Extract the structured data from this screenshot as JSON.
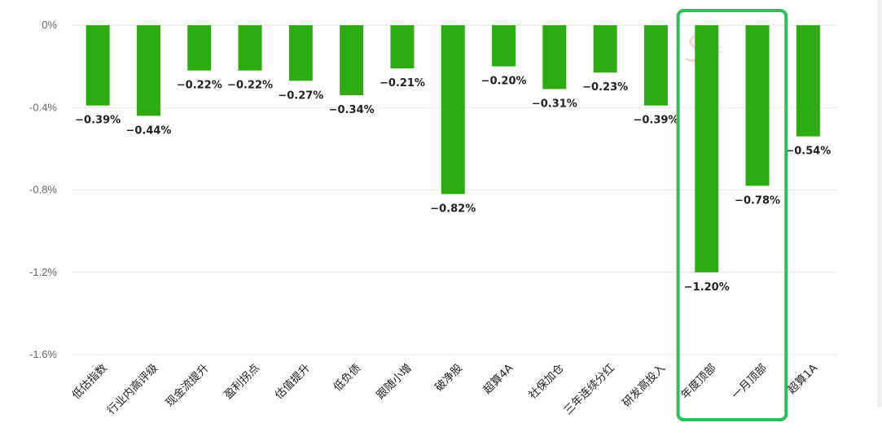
{
  "chart_data": {
    "type": "bar",
    "categories": [
      "低估指数",
      "行业内高评级",
      "现金流提升",
      "盈利拐点",
      "估值提升",
      "低负债",
      "跟随小增",
      "破净股",
      "超算4A",
      "社保加仓",
      "三年连续分红",
      "研发高投入",
      "年度顶部",
      "一月顶部",
      "超算1A"
    ],
    "values": [
      -0.39,
      -0.44,
      -0.22,
      -0.22,
      -0.27,
      -0.34,
      -0.21,
      -0.82,
      -0.2,
      -0.31,
      -0.23,
      -0.39,
      -1.2,
      -0.78,
      -0.54
    ],
    "value_labels": [
      "−0.39%",
      "−0.44%",
      "−0.22%",
      "−0.22%",
      "−0.27%",
      "−0.34%",
      "−0.21%",
      "−0.82%",
      "−0.20%",
      "−0.31%",
      "−0.23%",
      "−0.39%",
      "−1.20%",
      "−0.78%",
      "−0.54%"
    ],
    "yticks": [
      0,
      -0.4,
      -0.8,
      -1.2,
      -1.6
    ],
    "ytick_labels": [
      "0%",
      "-0.4%",
      "-0.8%",
      "-1.2%",
      "-1.6%"
    ],
    "ylim": [
      -1.6,
      0
    ],
    "grid": true,
    "bar_color": "#2eaa12",
    "highlight": {
      "categories": [
        "年度顶部",
        "一月顶部"
      ],
      "color": "#2fbe5a"
    },
    "watermark_text": "牛"
  }
}
